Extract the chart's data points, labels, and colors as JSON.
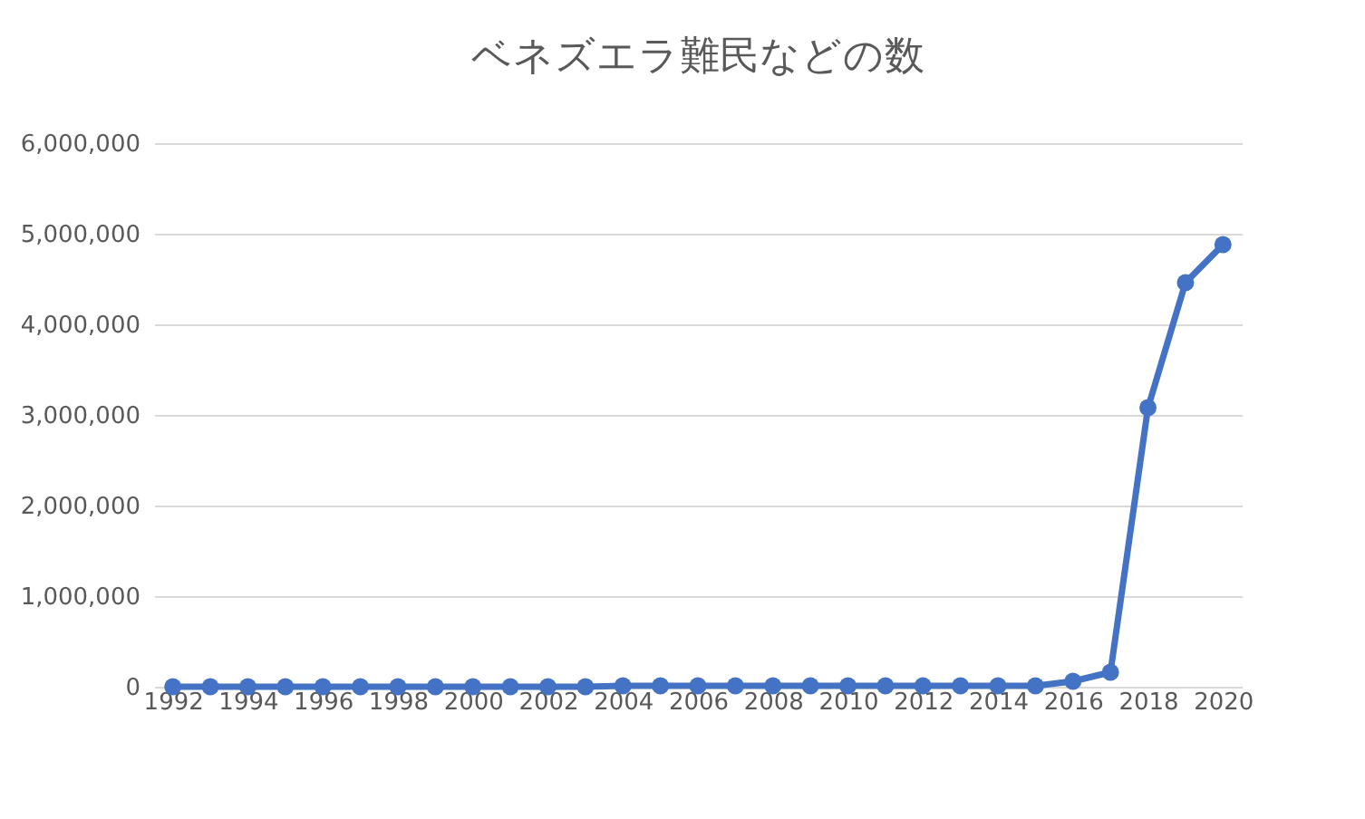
{
  "chart_data": {
    "type": "line",
    "title": "ベネズエラ難民などの数",
    "categories": [
      "1992",
      null,
      "1994",
      null,
      "1996",
      null,
      "1998",
      null,
      "2000",
      null,
      "2002",
      null,
      "2004",
      null,
      "2006",
      null,
      "2008",
      null,
      "2010",
      null,
      "2012",
      null,
      "2014",
      null,
      "2016",
      null,
      "2018",
      null,
      "2020"
    ],
    "series": [
      {
        "color": "#4472c4",
        "values": [
          0,
          0,
          0,
          0,
          0,
          0,
          0,
          0,
          0,
          0,
          0,
          0,
          10000,
          10000,
          10000,
          10000,
          10000,
          10000,
          10000,
          10000,
          10000,
          10000,
          10000,
          10000,
          60000,
          160000,
          3080000,
          4460000,
          4880000
        ]
      }
    ],
    "ylim": [
      0,
      6000000
    ],
    "yticks": [
      0,
      {
        "value": 1000000,
        "label": "1,000,000"
      },
      {
        "value": 2000000,
        "label": "2,000,000"
      },
      {
        "value": 3000000,
        "label": "3,000,000"
      },
      {
        "value": 4000000,
        "label": "4,000,000"
      },
      {
        "value": 5000000,
        "label": "5,000,000"
      },
      {
        "value": 6000000,
        "label": "6,000,000"
      }
    ],
    "grid": "y",
    "marker": "circle",
    "line_style": "solid"
  }
}
